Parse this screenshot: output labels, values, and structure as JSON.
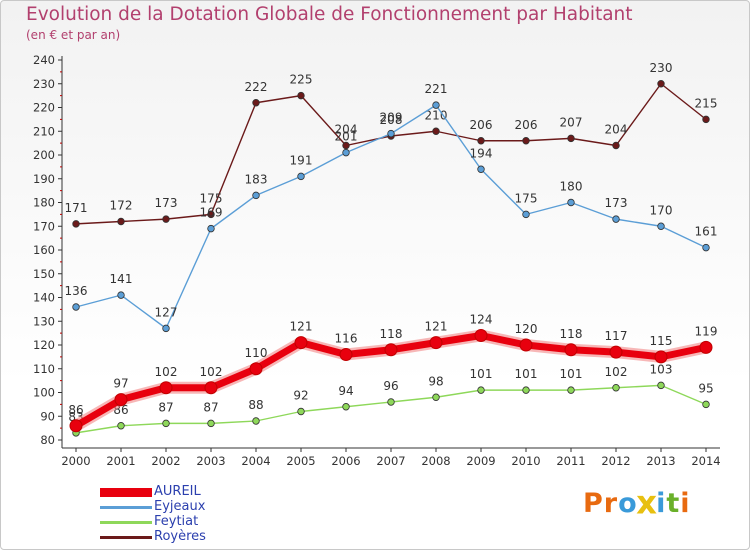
{
  "header": {
    "title": "Evolution de la Dotation Globale de Fonctionnement par Habitant",
    "subtitle": "(en € et par an)"
  },
  "logo": {
    "letters": [
      "P",
      "r",
      "o",
      "x",
      "i",
      "t",
      "i"
    ],
    "colors": [
      "#e86a10",
      "#e86a10",
      "#3a9ad9",
      "#e8c010",
      "#3a9ad9",
      "#6ab02a",
      "#e86a10"
    ]
  },
  "chart_data": {
    "type": "line",
    "title": "Evolution de la Dotation Globale de Fonctionnement par Habitant",
    "subtitle": "(en € et par an)",
    "x": [
      "2000",
      "2001",
      "2002",
      "2003",
      "2004",
      "2005",
      "2006",
      "2007",
      "2008",
      "2009",
      "2010",
      "2011",
      "2012",
      "2013",
      "2014"
    ],
    "ylim": [
      80,
      240
    ],
    "yticks": [
      80,
      90,
      100,
      110,
      120,
      130,
      140,
      150,
      160,
      170,
      180,
      190,
      200,
      210,
      220,
      230,
      240
    ],
    "grid": false,
    "legend_position": "bottom-left",
    "series": [
      {
        "name": "AUREIL",
        "color": "#e8000e",
        "values": [
          86,
          97,
          102,
          102,
          110,
          121,
          116,
          118,
          121,
          124,
          120,
          118,
          117,
          115,
          119
        ],
        "bold": true
      },
      {
        "name": "Eyjeaux",
        "color": "#5b9ed6",
        "values": [
          136,
          141,
          127,
          169,
          183,
          191,
          201,
          209,
          221,
          194,
          175,
          180,
          173,
          170,
          161
        ]
      },
      {
        "name": "Feytiat",
        "color": "#8ed85a",
        "values": [
          83,
          86,
          87,
          87,
          88,
          92,
          94,
          96,
          98,
          101,
          101,
          101,
          102,
          103,
          95
        ]
      },
      {
        "name": "Royères",
        "color": "#6b1a1a",
        "values": [
          171,
          172,
          173,
          175,
          222,
          225,
          204,
          208,
          210,
          206,
          206,
          207,
          204,
          230,
          215
        ]
      }
    ],
    "data_labels": {
      "AUREIL": [
        "86",
        "97",
        "102",
        "102",
        "110",
        "121",
        "116",
        "118",
        "121",
        "124",
        "120",
        "118",
        "117",
        "115",
        "119"
      ],
      "Eyjeaux": [
        "136",
        "141",
        "127",
        "169",
        "183",
        "191",
        "201",
        "209",
        "221",
        "194",
        "175",
        "180",
        "173",
        "170",
        "161"
      ],
      "Feytiat": [
        "83",
        "86",
        "87",
        "87",
        "88",
        "92",
        "94",
        "96",
        "98",
        "101",
        "101",
        "101",
        "102",
        "103",
        "95"
      ],
      "Royères": [
        "171",
        "172",
        "173",
        "175",
        "222",
        "225",
        "204",
        "208",
        "210",
        "206",
        "206",
        "207",
        "204",
        "230",
        "215"
      ]
    }
  }
}
